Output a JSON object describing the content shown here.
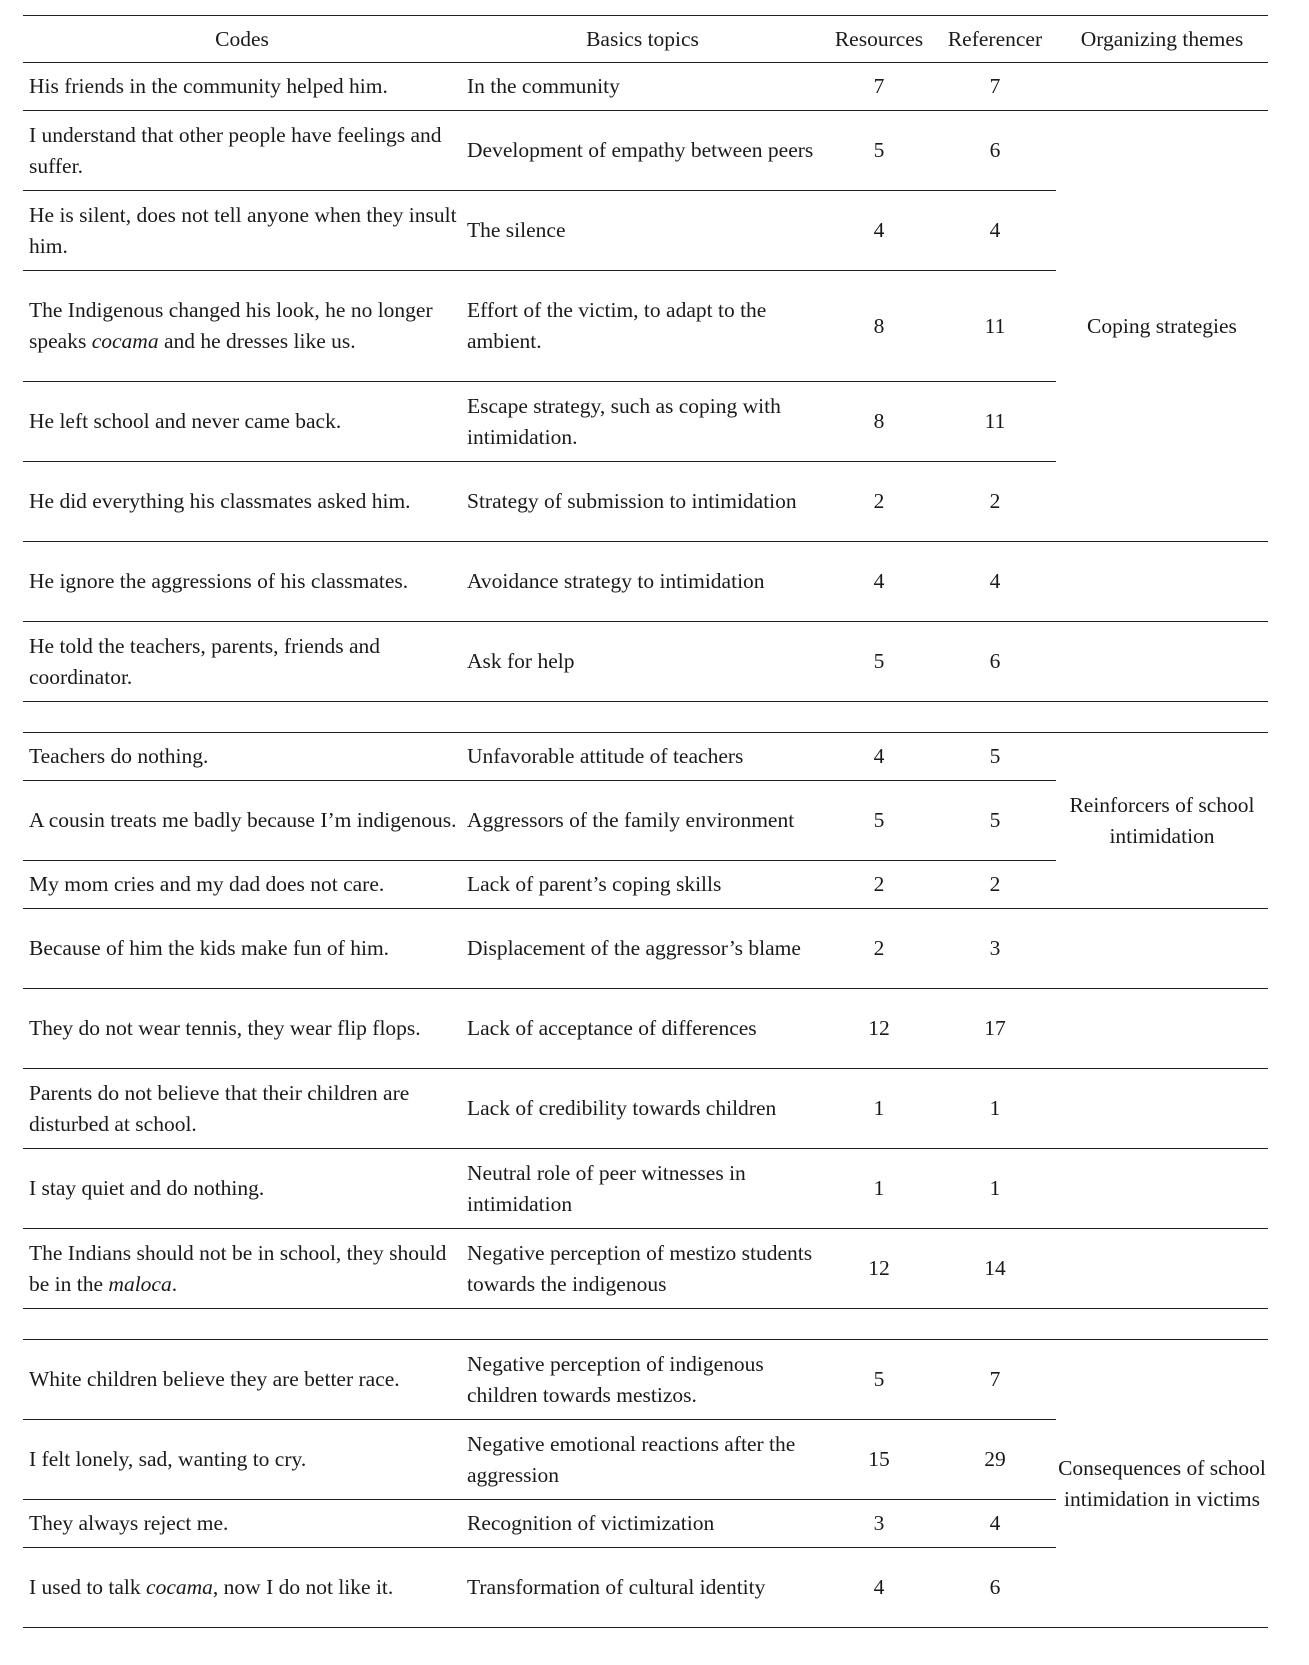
{
  "headers": {
    "codes": "Codes",
    "topics": "Basics topics",
    "resources": "Resources",
    "referencer": "Referencer",
    "themes": "Organizing themes"
  },
  "groups": [
    {
      "rows": [
        {
          "code": "His friends in the community helped him.",
          "topic": "In the community",
          "resources": "7",
          "referencer": "7",
          "h": 48
        }
      ]
    },
    {
      "theme": "Coping strategies",
      "rows": [
        {
          "code": "I understand that other people have feelings and suffer.",
          "topic": "Development of empathy between peers",
          "resources": "5",
          "referencer": "6",
          "h": 80
        },
        {
          "code": "He is silent, does not tell anyone when they insult him.",
          "topic": "The silence",
          "resources": "4",
          "referencer": "4",
          "h": 80
        },
        {
          "code": "The Indigenous changed his look, he no longer speaks ",
          "code_em": "cocama",
          "code_after": " and he dresses like us.",
          "topic": "Effort of the victim, to adapt to the ambient.",
          "resources": "8",
          "referencer": "11",
          "h": 111
        },
        {
          "code": "He left school and never came back.",
          "topic": "Escape strategy, such as coping with intimidation.",
          "resources": "8",
          "referencer": "11",
          "h": 80
        },
        {
          "code": "He did everything his classmates asked him.",
          "topic": "Strategy of submission to intimidation",
          "resources": "2",
          "referencer": "2",
          "h": 80
        }
      ]
    },
    {
      "rows": [
        {
          "code": "He ignore the aggressions of his classmates.",
          "topic": "Avoidance strategy to intimidation",
          "resources": "4",
          "referencer": "4",
          "h": 80
        }
      ]
    },
    {
      "rows": [
        {
          "code": "He told the teachers, parents, friends and coordinator.",
          "topic": "Ask for help",
          "resources": "5",
          "referencer": "6",
          "h": 80
        }
      ]
    },
    {
      "gap": true
    },
    {
      "theme": "Reinforcers of school intimidation",
      "rows": [
        {
          "code": "Teachers do nothing.",
          "topic": "Unfavorable attitude of teachers",
          "resources": "4",
          "referencer": "5",
          "h": 48
        },
        {
          "code": "A cousin treats me badly because I’m indigenous.",
          "topic": "Aggressors of the family environment",
          "resources": "5",
          "referencer": "5",
          "h": 80
        },
        {
          "code": "My mom cries and my dad does not care.",
          "topic": "Lack of parent’s coping skills",
          "resources": "2",
          "referencer": "2",
          "h": 48
        }
      ]
    },
    {
      "rows": [
        {
          "code": "Because of him the kids make fun of him.",
          "topic": "Displacement of the aggressor’s blame",
          "resources": "2",
          "referencer": "3",
          "h": 80
        }
      ]
    },
    {
      "rows": [
        {
          "code": "They do not wear tennis, they wear flip flops.",
          "topic": "Lack of acceptance of differences",
          "resources": "12",
          "referencer": "17",
          "h": 80
        }
      ]
    },
    {
      "rows": [
        {
          "code": "Parents do not believe that their children are disturbed at school.",
          "topic": "Lack of credibility towards children",
          "resources": "1",
          "referencer": "1",
          "h": 80
        }
      ]
    },
    {
      "rows": [
        {
          "code": "I stay quiet and do nothing.",
          "topic": "Neutral role of peer witnesses in intimidation",
          "resources": "1",
          "referencer": "1",
          "h": 80
        }
      ]
    },
    {
      "rows": [
        {
          "code": "The Indians should not be in school, they should be in the ",
          "code_em": "maloca",
          "code_after": ".",
          "topic": "Negative perception of mestizo students towards the indigenous",
          "resources": "12",
          "referencer": "14",
          "h": 80
        }
      ]
    },
    {
      "gap": true
    },
    {
      "theme": "Consequences of school intimidation in victims",
      "rows": [
        {
          "code": "White children believe they are better race.",
          "topic": "Negative perception of indigenous children towards mestizos.",
          "resources": "5",
          "referencer": "7",
          "h": 80
        },
        {
          "code": "I felt lonely, sad, wanting to cry.",
          "topic": "Negative emotional reactions after the aggression",
          "resources": "15",
          "referencer": "29",
          "h": 80
        },
        {
          "code": "They always reject me.",
          "topic": "Recognition of victimization",
          "resources": "3",
          "referencer": "4",
          "h": 48
        },
        {
          "code": "I used to talk ",
          "code_em": "cocama",
          "code_after": ", now I do not like it.",
          "topic": "Transformation of cultural identity",
          "resources": "4",
          "referencer": "6",
          "h": 80
        }
      ]
    }
  ]
}
